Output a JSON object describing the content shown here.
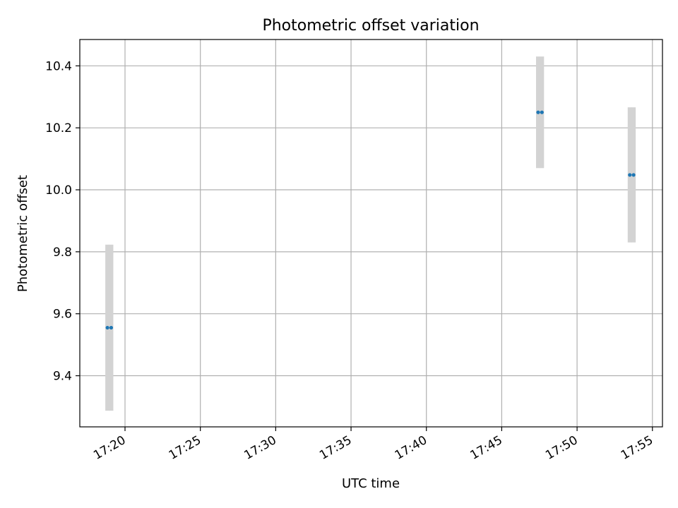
{
  "chart_data": {
    "type": "scatter",
    "title": "Photometric offset variation",
    "xlabel": "UTC time",
    "ylabel": "Photometric offset",
    "x_ticks": [
      "17:20",
      "17:25",
      "17:30",
      "17:35",
      "17:40",
      "17:45",
      "17:50",
      "17:55"
    ],
    "y_ticks": [
      "9.4",
      "9.6",
      "9.8",
      "10.0",
      "10.2",
      "10.4"
    ],
    "xlim": [
      "17:17:00",
      "17:55:40"
    ],
    "ylim": [
      9.235,
      10.485
    ],
    "grid": true,
    "points": [
      {
        "time": "17:18:50",
        "value": 9.555,
        "error": 0.268
      },
      {
        "time": "17:19:05",
        "value": 9.555,
        "error": 0.268
      },
      {
        "time": "17:47:25",
        "value": 10.25,
        "error": 0.18
      },
      {
        "time": "17:47:40",
        "value": 10.25,
        "error": 0.18
      },
      {
        "time": "17:53:30",
        "value": 10.048,
        "error": 0.218
      },
      {
        "time": "17:53:45",
        "value": 10.048,
        "error": 0.218
      }
    ],
    "colors": {
      "point": "#1f77b4",
      "errorbar": "#d3d3d3",
      "grid": "#b0b0b0",
      "axes": "#000000"
    }
  }
}
